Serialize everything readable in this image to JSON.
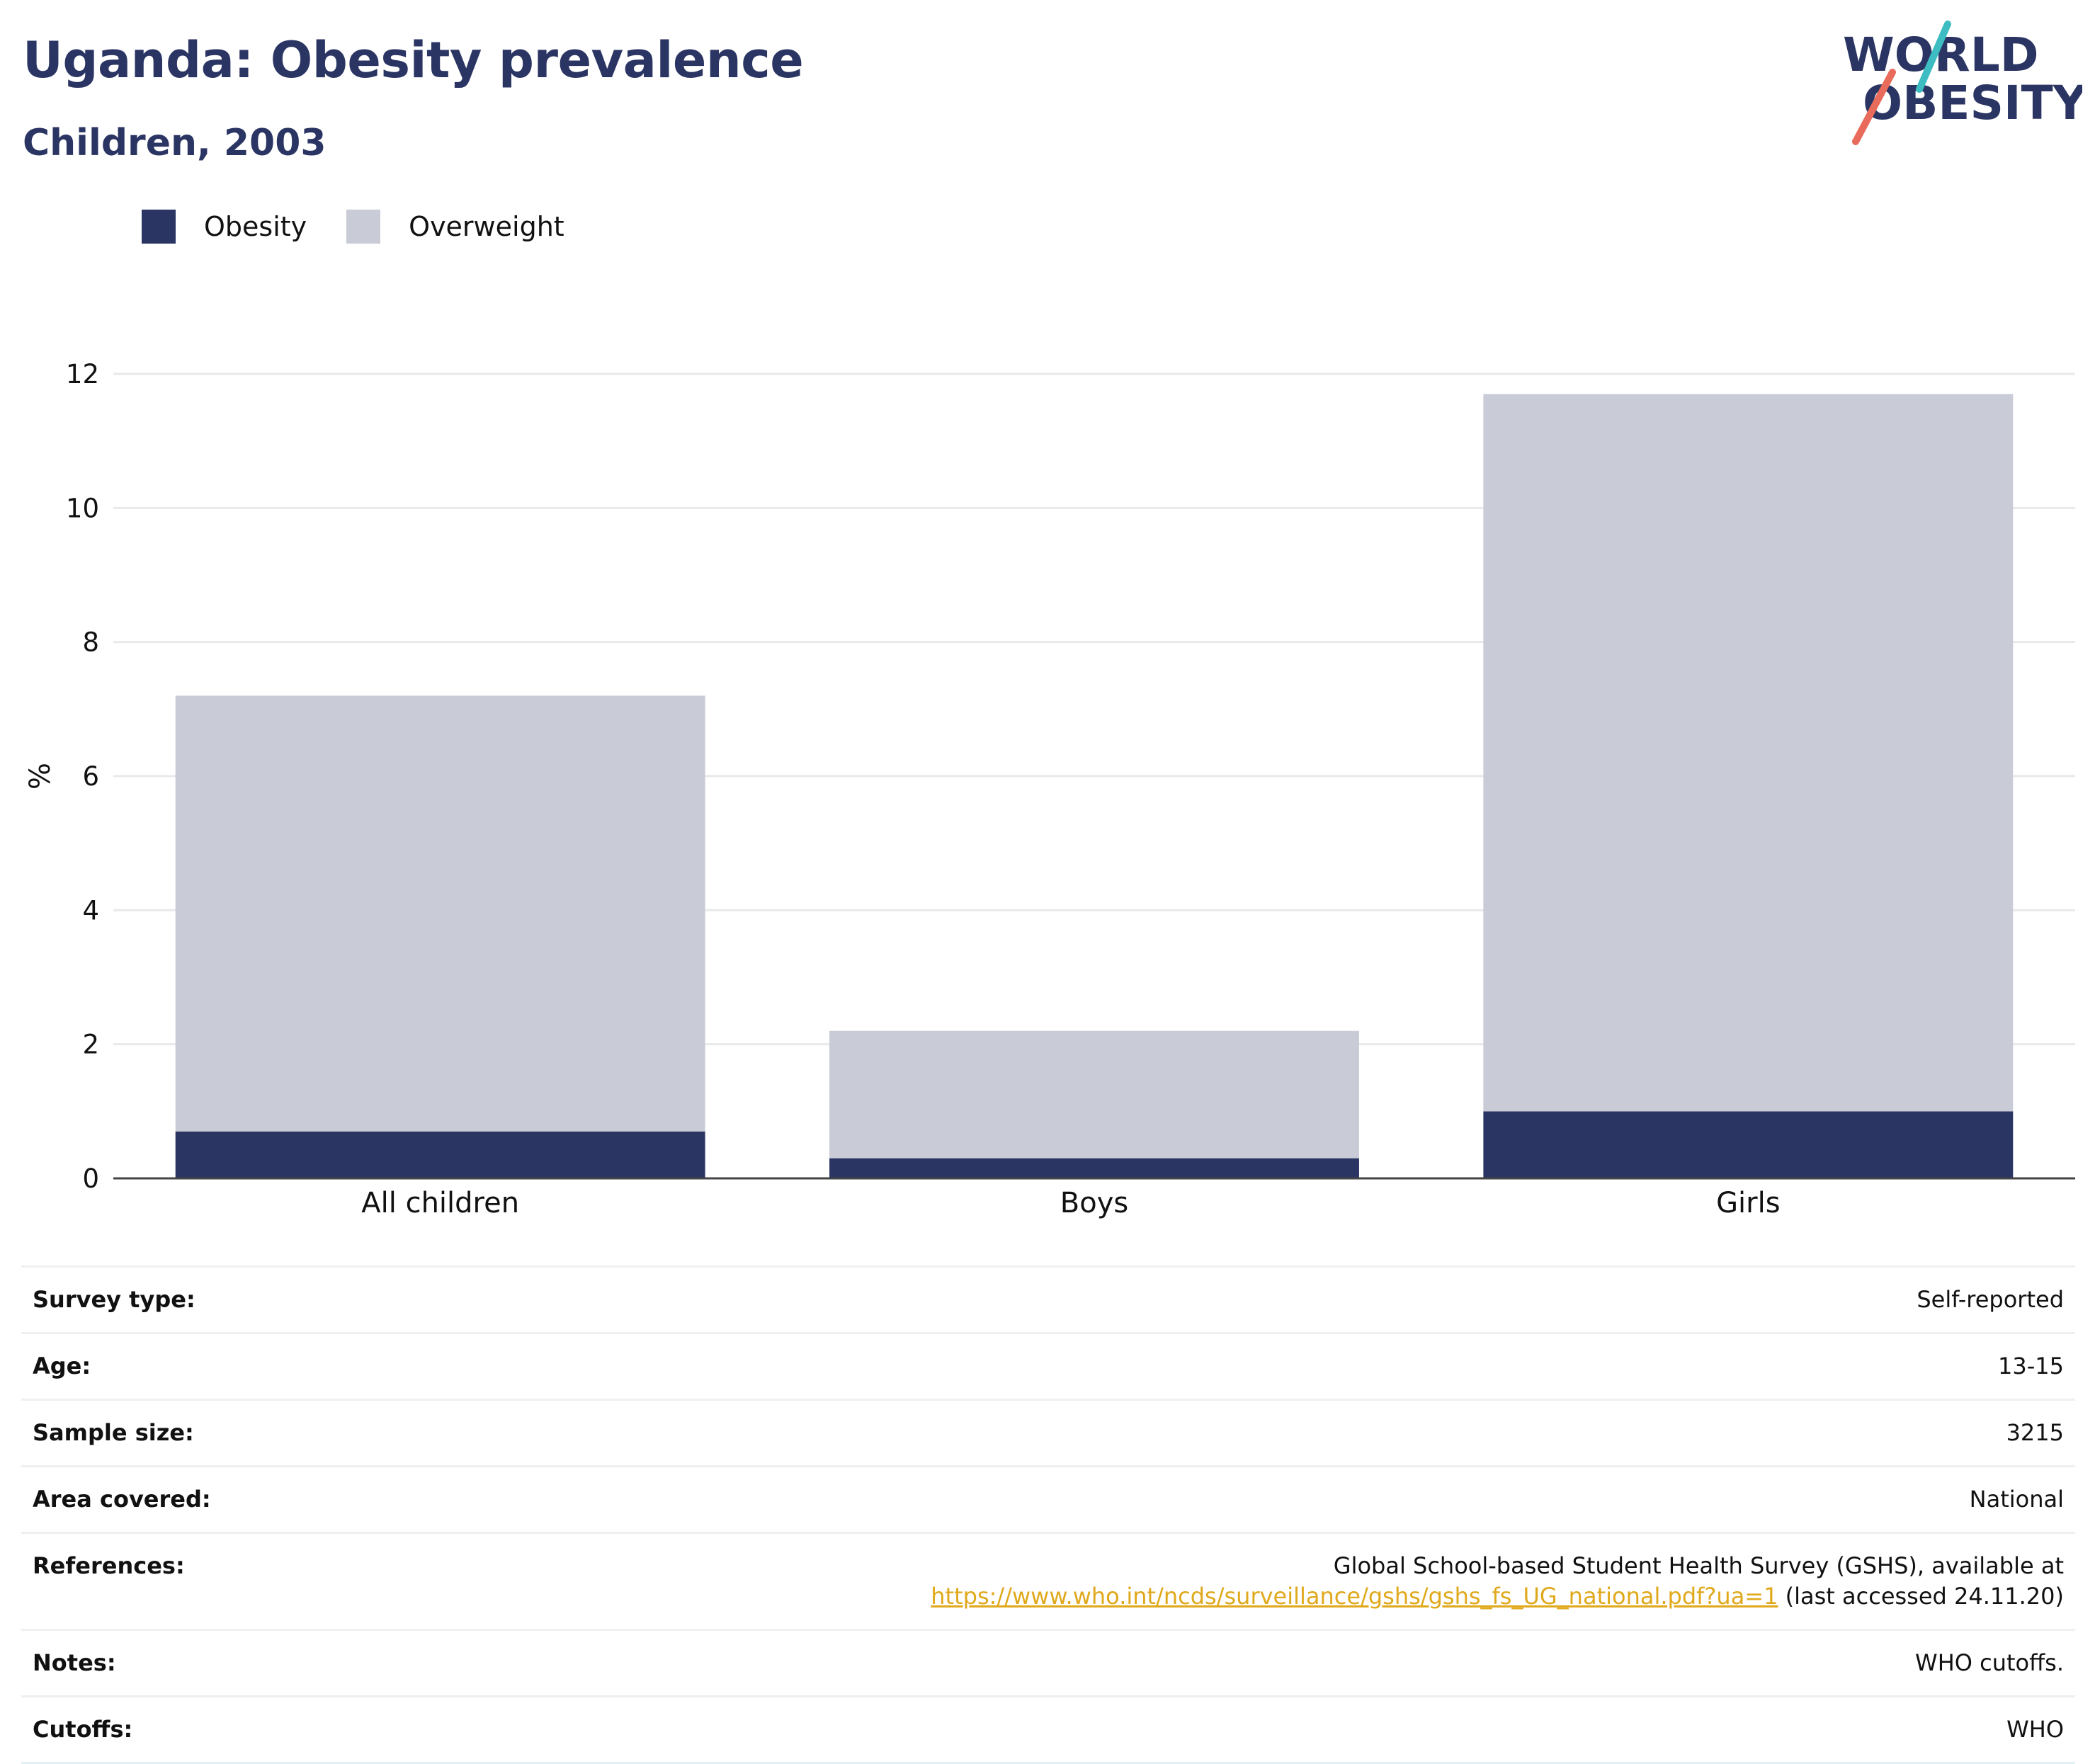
{
  "header": {
    "title": "Uganda: Obesity prevalence",
    "subtitle": "Children, 2003",
    "logo_text_line1": "WORLD",
    "logo_text_line2": "OBESITY"
  },
  "colors": {
    "obesity": "#2b3563",
    "overweight": "#c9cbd7",
    "title": "#2b3563",
    "link": "#e0a91c",
    "logo_teal": "#3dbdc1",
    "logo_coral": "#e96b5b"
  },
  "chart_data": {
    "type": "bar",
    "stacked": true,
    "categories": [
      "All children",
      "Boys",
      "Girls"
    ],
    "series": [
      {
        "name": "Obesity",
        "values": [
          0.7,
          0.3,
          1.0
        ]
      },
      {
        "name": "Overweight",
        "values": [
          6.5,
          1.9,
          10.7
        ]
      }
    ],
    "ylabel": "%",
    "xlabel": "",
    "ylim": [
      0,
      12
    ],
    "yticks": [
      "0",
      "2",
      "4",
      "6",
      "8",
      "10",
      "12"
    ],
    "grid": true,
    "legend": "top-left"
  },
  "info": {
    "rows": [
      {
        "label": "Survey type:",
        "value": "Self-reported"
      },
      {
        "label": "Age:",
        "value": "13-15"
      },
      {
        "label": "Sample size:",
        "value": "3215"
      },
      {
        "label": "Area covered:",
        "value": "National"
      }
    ],
    "references": {
      "label": "References:",
      "line1": "Global School-based Student Health Survey (GSHS), available at",
      "url": "https://www.who.int/ncds/surveillance/gshs/gshs_fs_UG_national.pdf?ua=1",
      "suffix": " (last accessed 24.11.20)"
    },
    "notes": {
      "label": "Notes:",
      "value": "WHO cutoffs."
    },
    "cutoffs": {
      "label": "Cutoffs:",
      "value": "WHO"
    }
  }
}
